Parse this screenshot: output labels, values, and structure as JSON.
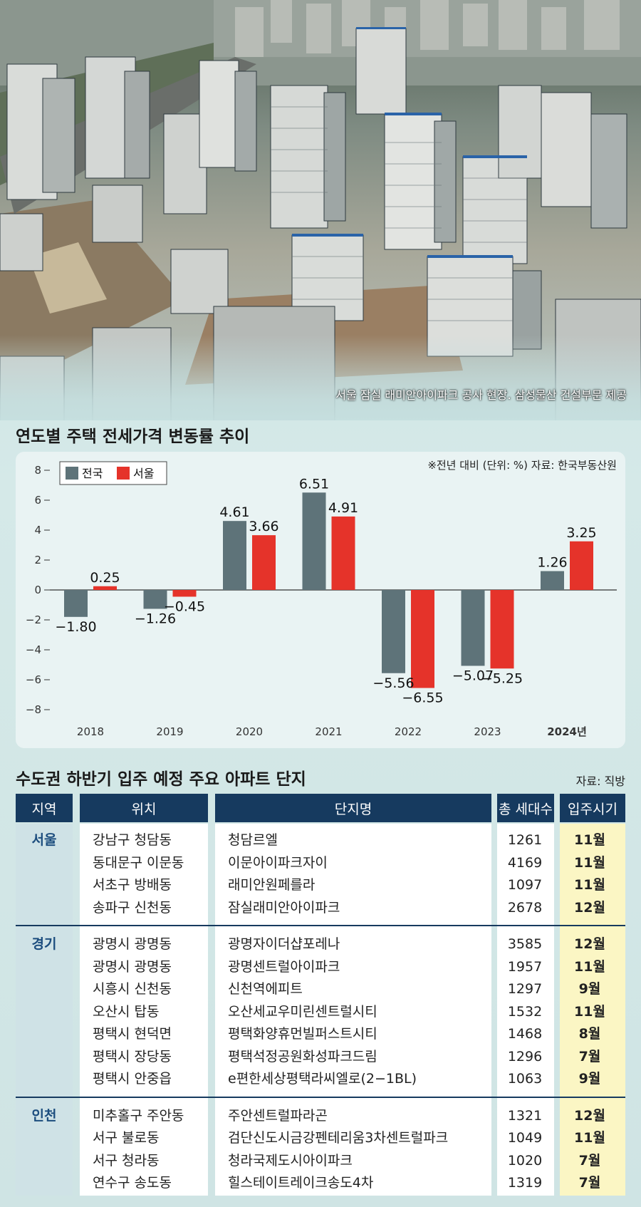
{
  "photo": {
    "caption": "서울 잠실 래미안아이파크 공사 현장.  삼성물산 건설부문 제공"
  },
  "chart": {
    "title": "연도별 주택 전세가격 변동률 추이",
    "note": "※전년 대비 (단위: %) 자료: 한국부동산원",
    "colors": {
      "national": "#5e7379",
      "seoul": "#e5332a"
    }
  },
  "chart_data": {
    "type": "bar",
    "title": "연도별 주택 전세가격 변동률 추이",
    "categories": [
      "2018",
      "2019",
      "2020",
      "2021",
      "2022",
      "2023",
      "2024년"
    ],
    "series": [
      {
        "name": "전국",
        "values": [
          -1.8,
          -1.26,
          4.61,
          6.51,
          -5.56,
          -5.07,
          1.26
        ],
        "labels": [
          "−1.80",
          "−1.26",
          "4.61",
          "6.51",
          "−5.56",
          "−5.07",
          "1.26"
        ]
      },
      {
        "name": "서울",
        "values": [
          0.25,
          -0.45,
          3.66,
          4.91,
          -6.55,
          -5.25,
          3.25
        ],
        "labels": [
          "0.25",
          "−0.45",
          "3.66",
          "4.91",
          "−6.55",
          "−5.25",
          "3.25"
        ]
      }
    ],
    "ylim": [
      -8,
      8
    ],
    "yticks": [
      8,
      6,
      4,
      2,
      0,
      -2,
      -4,
      -6,
      -8
    ],
    "ytick_labels": [
      "8",
      "6",
      "4",
      "2",
      "0",
      "−2",
      "−4",
      "−6",
      "−8"
    ],
    "xlabel": "",
    "ylabel": "",
    "legend_position": "top-left",
    "grid": false
  },
  "table": {
    "title": "수도권 하반기 입주 예정 주요 아파트 단지",
    "source": "자료: 직방",
    "headers": {
      "region": "지역",
      "location": "위치",
      "name": "단지명",
      "units": "총 세대수",
      "date": "입주시기"
    },
    "colors": {
      "header": "#163a5f",
      "date_highlight": "#fbf6c4",
      "region_text": "#1c4d7e"
    },
    "groups": [
      {
        "region": "서울",
        "rows": [
          {
            "location": "강남구 청담동",
            "name": "청담르엘",
            "units": "1261",
            "date": "11월"
          },
          {
            "location": "동대문구 이문동",
            "name": "이문아이파크자이",
            "units": "4169",
            "date": "11월"
          },
          {
            "location": "서초구 방배동",
            "name": "래미안원페를라",
            "units": "1097",
            "date": "11월"
          },
          {
            "location": "송파구 신천동",
            "name": "잠실래미안아이파크",
            "units": "2678",
            "date": "12월"
          }
        ]
      },
      {
        "region": "경기",
        "rows": [
          {
            "location": "광명시 광명동",
            "name": "광명자이더샵포레나",
            "units": "3585",
            "date": "12월"
          },
          {
            "location": "광명시 광명동",
            "name": "광명센트럴아이파크",
            "units": "1957",
            "date": "11월"
          },
          {
            "location": "시흥시 신천동",
            "name": "신천역에피트",
            "units": "1297",
            "date": "9월"
          },
          {
            "location": "오산시 탑동",
            "name": "오산세교우미린센트럴시티",
            "units": "1532",
            "date": "11월"
          },
          {
            "location": "평택시 현덕면",
            "name": "평택화양휴먼빌퍼스트시티",
            "units": "1468",
            "date": "8월"
          },
          {
            "location": "평택시 장당동",
            "name": "평택석정공원화성파크드림",
            "units": "1296",
            "date": "7월"
          },
          {
            "location": "평택시 안중읍",
            "name": "e편한세상평택라씨엘로(2−1BL)",
            "units": "1063",
            "date": "9월"
          }
        ]
      },
      {
        "region": "인천",
        "rows": [
          {
            "location": "미추홀구 주안동",
            "name": "주안센트럴파라곤",
            "units": "1321",
            "date": "12월"
          },
          {
            "location": "서구 불로동",
            "name": "검단신도시금강펜테리움3차센트럴파크",
            "units": "1049",
            "date": "11월"
          },
          {
            "location": "서구 청라동",
            "name": "청라국제도시아이파크",
            "units": "1020",
            "date": "7월"
          },
          {
            "location": "연수구 송도동",
            "name": "힐스테이트레이크송도4차",
            "units": "1319",
            "date": "7월"
          }
        ]
      }
    ]
  }
}
